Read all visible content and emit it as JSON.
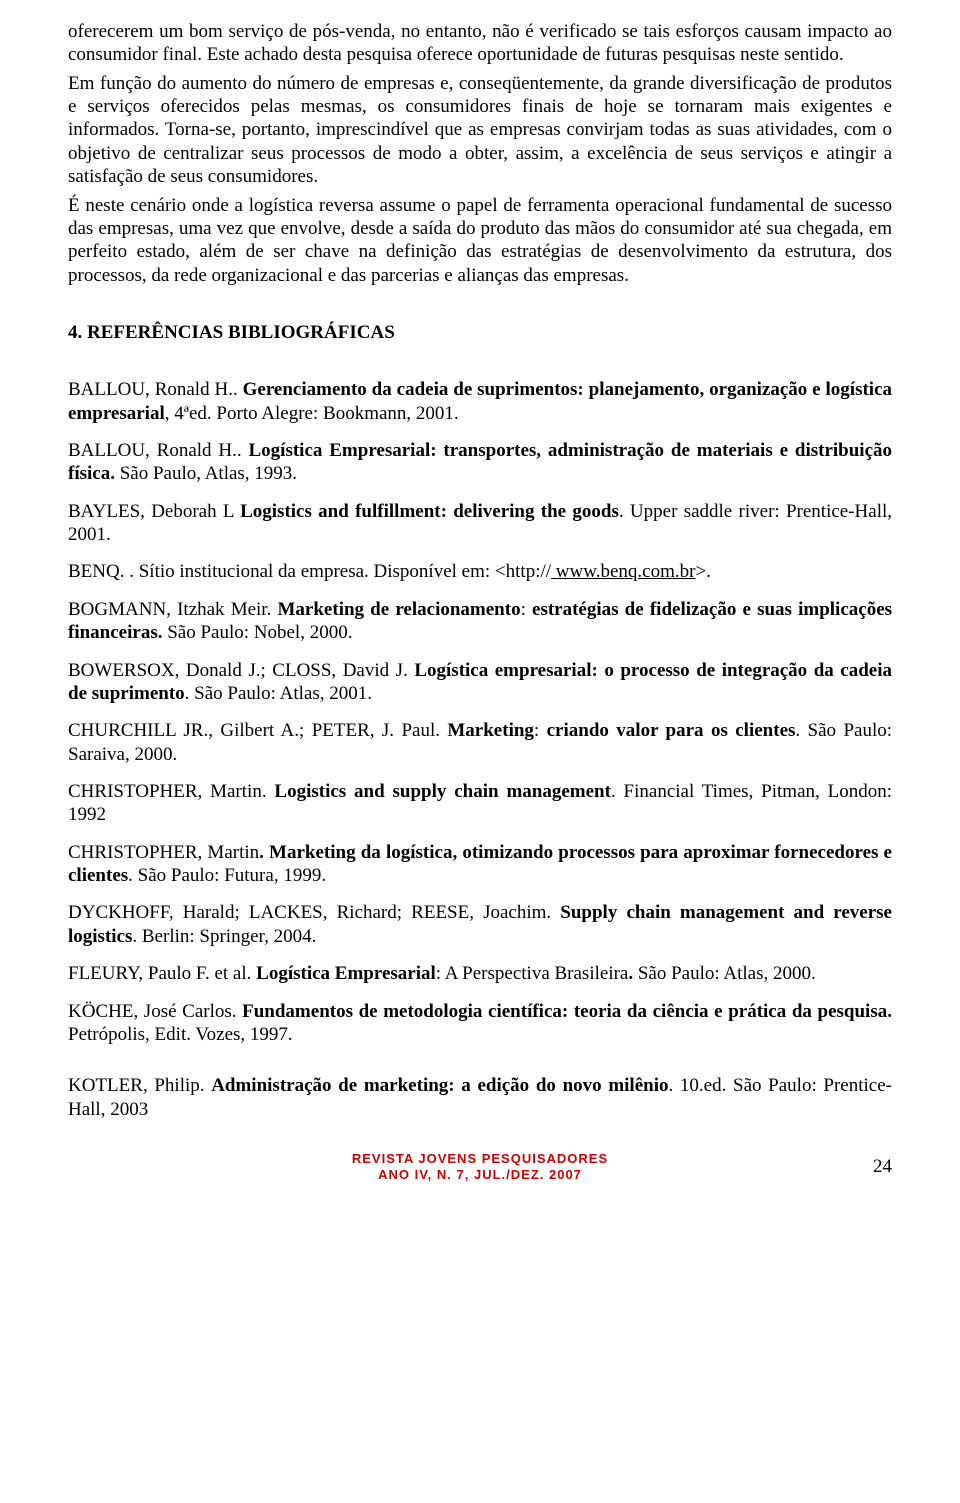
{
  "paragraphs": {
    "p1": "oferecerem um bom serviço de pós-venda, no entanto, não é verificado se tais esforços causam impacto ao consumidor final. Este achado desta pesquisa oferece oportunidade de futuras pesquisas neste sentido.",
    "p2": "Em função do aumento do número de empresas e, conseqüentemente, da grande diversificação de produtos e serviços oferecidos pelas mesmas, os consumidores finais de hoje se tornaram mais exigentes e informados. Torna-se, portanto, imprescindível que as empresas convirjam todas as suas atividades, com o objetivo de centralizar seus processos de modo a obter, assim, a excelência de seus serviços e atingir a satisfação de seus consumidores.",
    "p3": "É neste cenário onde a logística reversa assume o papel de ferramenta operacional fundamental de sucesso das empresas, uma vez que envolve, desde a saída do produto das mãos do consumidor até sua chegada, em perfeito estado, além de ser chave na definição das estratégias de desenvolvimento da estrutura, dos processos, da rede organizacional e das parcerias e alianças das empresas."
  },
  "section_heading": "4. REFERÊNCIAS BIBLIOGRÁFICAS",
  "refs": {
    "r1a": "BALLOU, Ronald H.. ",
    "r1b": "Gerenciamento da cadeia de suprimentos: planejamento, organização e logística empresarial",
    "r1c": ", 4ªed. Porto Alegre: Bookmann, 2001.",
    "r2a": "BALLOU, Ronald H.. ",
    "r2b": "Logística Empresarial: transportes, administração de materiais e distribuição física.",
    "r2c": " São Paulo, Atlas, 1993.",
    "r3a": "BAYLES, Deborah L ",
    "r3b": "Logistics and fulfillment: delivering the goods",
    "r3c": ". Upper saddle river: Prentice-Hall, 2001.",
    "r4a": "BENQ. . Sítio institucional da empresa. Disponível em: <http://",
    "r4b": " www.benq.com.br",
    "r4c": ">.",
    "r5a": "BOGMANN",
    "r5b": ", Itzhak Meir. ",
    "r5c": "Marketing de relacionamento",
    "r5d": ": ",
    "r5e": "estratégias de fidelização e suas implicações financeiras.",
    "r5f": " São Paulo: Nobel, 2000.",
    "r6a": "BOWERSOX, Donald J",
    "r6b": ".; CLOSS, David J",
    "r6c": ". ",
    "r6d": "Logística empresarial: o processo de integração da cadeia de suprimento",
    "r6e": ". São Paulo: Atlas, 2001.",
    "r7a": "CHURCHILL JR",
    "r7b": "., Gilbert A.; PETER, J. Paul. ",
    "r7c": "Marketing",
    "r7d": ": ",
    "r7e": "criando valor para os clientes",
    "r7f": ". São Paulo: Saraiva, 2000.",
    "r8a": "CHRISTOPHER, Martin. ",
    "r8b": "Logistics and supply chain management",
    "r8c": ". Financial Times, Pitman, London: 1992",
    "r9a": "CHRISTOPHER",
    "r9b": ", Martin",
    "r9c": ". Marketing da logística, otimizando processos para aproximar fornecedores e clientes",
    "r9d": ". São Paulo: Futura, 1999.",
    "r10a": "DYCKHOFF, Harald; LACKES, Richard; REESE, Joachim. ",
    "r10b": "Supply chain management and reverse logistics",
    "r10c": ". Berlin: Springer, 2004.",
    "r11a": "FLEURY, Paulo F. et al. ",
    "r11b": "Logística Empresarial",
    "r11c": ": A Perspectiva Brasileira",
    "r11d": ". ",
    "r11e": "São Paulo:  Atlas, 2000.",
    "r12a": "KÖCHE, José Carlos. ",
    "r12b": "Fundamentos de metodologia científica: teoria da ciência e prática da pesquisa.",
    "r12c": " Petrópolis, Edit. Vozes, 1997.",
    "r13a": "KOTLER",
    "r13b": ", Philip. ",
    "r13c": "Administração de marketing: a edição do novo milênio",
    "r13d": ". 10.ed. São Paulo: Prentice-Hall, 2003"
  },
  "footer": {
    "line1": "REVISTA JOVENS PESQUISADORES",
    "line2": "ANO IV, N. 7, JUL./DEZ. 2007",
    "page": "24"
  },
  "colors": {
    "text": "#000000",
    "footer": "#cc0000",
    "background": "#ffffff"
  }
}
